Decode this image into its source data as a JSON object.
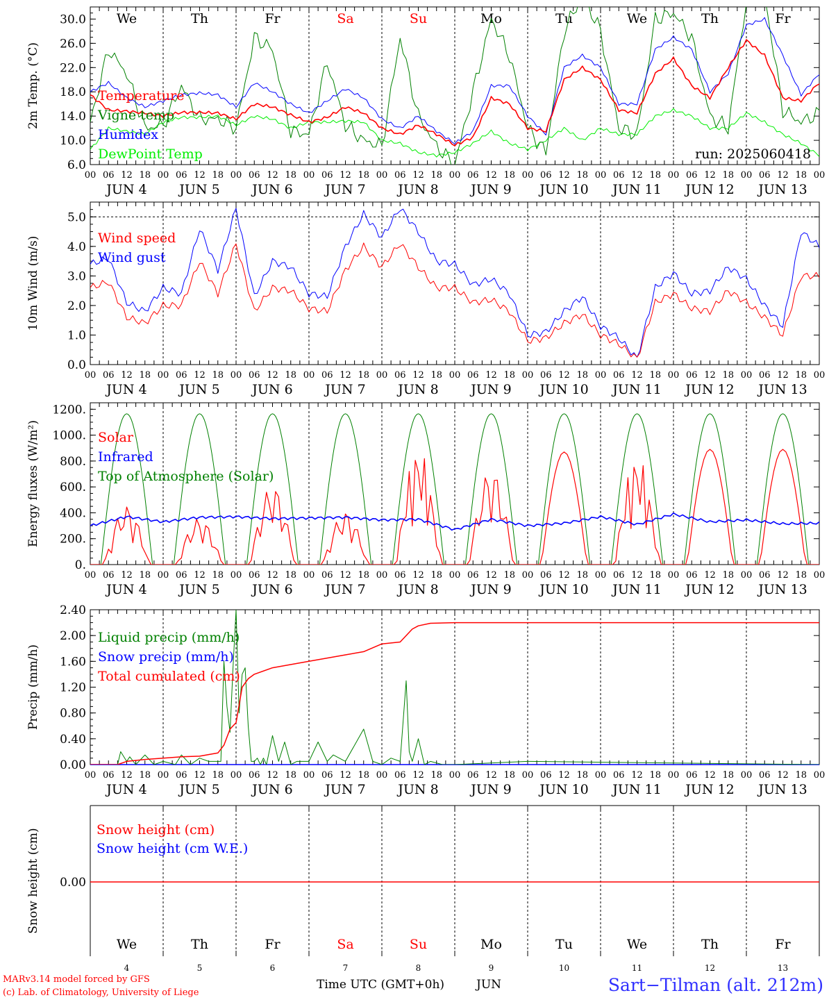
{
  "chart_data": [
    {
      "type": "line",
      "ylabel": "2m Temp. (°C)",
      "ylim": [
        6,
        32
      ],
      "yticks": [
        "6.0",
        "10.0",
        "14.0",
        "18.0",
        "22.0",
        "26.0",
        "30.0"
      ],
      "grid": "dashed vertical lines at each day boundary",
      "legend_position": "left",
      "annotation": "run: 2025060418",
      "x": [
        0,
        6,
        12,
        18,
        24,
        30,
        36,
        42,
        48,
        54,
        60,
        66,
        72,
        78,
        84,
        90,
        96,
        102,
        108,
        114,
        120,
        126,
        132,
        138,
        144,
        150,
        156,
        162,
        168,
        174,
        180,
        186,
        192,
        198,
        204,
        210,
        216,
        222,
        228,
        234,
        240
      ],
      "series": [
        {
          "name": "Temperature",
          "color": "#ff0000",
          "values": [
            17.5,
            15,
            14.8,
            14.5,
            14,
            14.6,
            14.6,
            14.5,
            13.5,
            16,
            15.5,
            14.2,
            13,
            13.8,
            15.5,
            14.5,
            12,
            11,
            12.5,
            11,
            9.2,
            10.5,
            17,
            16,
            12,
            11.5,
            20,
            22,
            20,
            15,
            14.5,
            21,
            23.5,
            19,
            17,
            22,
            26.5,
            24,
            17,
            16.5,
            19.5
          ]
        },
        {
          "name": "Vigne temp",
          "color": "#008000",
          "values": [
            13,
            25,
            21,
            12,
            12.5,
            19,
            13.5,
            13.5,
            12,
            27,
            25,
            11.5,
            11,
            23,
            12.5,
            10,
            9,
            27,
            14,
            9,
            6,
            18,
            30,
            24,
            12,
            8,
            28,
            34,
            28,
            12,
            11,
            30,
            31,
            27,
            14,
            12,
            33,
            34,
            15,
            13,
            14.5
          ]
        },
        {
          "name": "Humidex",
          "color": "#0000ff",
          "values": [
            18,
            19.5,
            17,
            15.5,
            16.5,
            17.5,
            17.8,
            17.5,
            15.5,
            19.5,
            18,
            16,
            14.5,
            16.5,
            18.5,
            17,
            13.5,
            12,
            14,
            11.5,
            9.5,
            11.5,
            19,
            19,
            14,
            11,
            22,
            24,
            22,
            16,
            16,
            25,
            27,
            25,
            18,
            21,
            29,
            30,
            24,
            17.5,
            21
          ]
        },
        {
          "name": "DewPoint Temp",
          "color": "#00ee00",
          "values": [
            8.5,
            12,
            11.5,
            11,
            13,
            13.8,
            13.8,
            14,
            12.5,
            14,
            13.5,
            12,
            13,
            13,
            13.2,
            13,
            10,
            9.5,
            8,
            7.5,
            8,
            9.5,
            11.5,
            9.5,
            8.5,
            10,
            12,
            10,
            12,
            11,
            11,
            14,
            15,
            14,
            12,
            12,
            14.5,
            13,
            11,
            9.5,
            7.5
          ]
        }
      ],
      "day_labels": [
        "We",
        "Th",
        "Fr",
        "Sa",
        "Su",
        "Mo",
        "Tu",
        "We",
        "Th",
        "Fr"
      ],
      "weekend_color": "#ff0000"
    },
    {
      "type": "line",
      "ylabel": "10m Wind (m/s)",
      "ylim": [
        0,
        5.5
      ],
      "yticks": [
        "0.0",
        "1.0",
        "2.0",
        "3.0",
        "4.0",
        "5.0"
      ],
      "reference_line": 5.0,
      "legend_position": "left",
      "x": [
        0,
        6,
        12,
        18,
        24,
        30,
        36,
        42,
        48,
        54,
        60,
        66,
        72,
        78,
        84,
        90,
        96,
        102,
        108,
        114,
        120,
        126,
        132,
        138,
        144,
        150,
        156,
        162,
        168,
        174,
        180,
        186,
        192,
        198,
        204,
        210,
        216,
        222,
        228,
        234,
        240
      ],
      "series": [
        {
          "name": "Wind speed",
          "color": "#ff0000",
          "values": [
            2.6,
            2.8,
            1.6,
            1.4,
            2.0,
            2.0,
            3.5,
            2.4,
            4.1,
            1.8,
            2.6,
            2.5,
            1.9,
            1.8,
            3.2,
            4.0,
            3.3,
            4.1,
            3.3,
            2.6,
            2.6,
            2.1,
            2.2,
            1.8,
            0.8,
            0.9,
            1.4,
            1.7,
            1.0,
            0.7,
            0.2,
            2.1,
            2.4,
            1.9,
            1.8,
            2.5,
            2.1,
            1.6,
            1.0,
            3.0,
            3.0
          ]
        },
        {
          "name": "Wind gust",
          "color": "#0000ff",
          "values": [
            3.4,
            3.6,
            2.1,
            1.8,
            2.6,
            2.4,
            4.6,
            3.2,
            5.3,
            2.3,
            3.5,
            3.3,
            2.4,
            2.3,
            4.0,
            5.1,
            4.3,
            5.3,
            4.5,
            3.5,
            3.4,
            2.7,
            2.9,
            2.4,
            1.0,
            1.1,
            1.8,
            2.3,
            1.3,
            0.9,
            0.2,
            2.6,
            3.1,
            2.4,
            2.5,
            3.3,
            2.9,
            2.0,
            1.3,
            4.5,
            4.0
          ]
        }
      ]
    },
    {
      "type": "line",
      "ylabel": "Energy fluxes (W/m²)",
      "ylim": [
        0,
        1250
      ],
      "yticks": [
        "0.",
        "200.",
        "400.",
        "600.",
        "800.",
        "1000.",
        "1200."
      ],
      "legend_position": "left",
      "series": [
        {
          "name": "Solar",
          "color": "#ff0000",
          "days": [
            {
              "peak": 500,
              "pattern": "broken"
            },
            {
              "peak": 400,
              "pattern": "broken"
            },
            {
              "peak": 680,
              "pattern": "broken"
            },
            {
              "peak": 450,
              "pattern": "broken"
            },
            {
              "peak": 900,
              "pattern": "spiky"
            },
            {
              "peak": 820,
              "pattern": "broken"
            },
            {
              "peak": 870,
              "pattern": "smooth"
            },
            {
              "peak": 840,
              "pattern": "spiky"
            },
            {
              "peak": 890,
              "pattern": "smooth"
            },
            {
              "peak": 890,
              "pattern": "smooth"
            }
          ]
        },
        {
          "name": "Infrared",
          "color": "#0000ff",
          "x": [
            0,
            12,
            24,
            36,
            48,
            60,
            72,
            84,
            96,
            108,
            120,
            132,
            144,
            156,
            168,
            180,
            192,
            204,
            216,
            228,
            240
          ],
          "values": [
            300,
            370,
            330,
            365,
            370,
            355,
            360,
            365,
            345,
            350,
            270,
            350,
            300,
            320,
            370,
            310,
            390,
            330,
            345,
            315,
            320
          ]
        },
        {
          "name": "Top of Atmosphere (Solar)",
          "color": "#008000",
          "peak": 1165
        }
      ]
    },
    {
      "type": "line",
      "ylabel": "Precip (mm/h)",
      "ylim": [
        0,
        2.4
      ],
      "yticks": [
        "0.00",
        "0.40",
        "0.80",
        "1.20",
        "1.60",
        "2.00",
        "2.40"
      ],
      "legend_position": "left",
      "series": [
        {
          "name": "Liquid precip (mm/h)",
          "color": "#008000",
          "x": [
            0,
            9,
            10,
            12,
            13,
            15,
            18,
            21,
            24,
            28,
            30,
            33,
            36,
            39,
            43,
            44,
            45,
            46,
            47,
            48,
            49,
            50,
            51,
            52,
            53,
            54,
            55,
            56,
            57,
            58,
            60,
            62,
            64,
            66,
            68,
            72,
            75,
            78,
            80,
            84,
            90,
            93,
            96,
            99,
            102,
            104,
            105,
            106,
            108,
            110,
            112,
            116,
            120,
            144,
            240
          ],
          "values": [
            0,
            0,
            0.2,
            0.05,
            0.12,
            0,
            0.15,
            0,
            0.05,
            0,
            0.15,
            0,
            0.1,
            0.05,
            0.05,
            1.6,
            0.9,
            0.5,
            1.5,
            2.4,
            0.8,
            1.4,
            1.5,
            0.6,
            0.05,
            0.05,
            0.1,
            0,
            0.1,
            0,
            0.45,
            0.05,
            0.35,
            0,
            0.05,
            0.05,
            0.35,
            0.05,
            0.15,
            0.05,
            0.55,
            0.05,
            0,
            0.1,
            0.05,
            1.3,
            0.2,
            0.05,
            0.4,
            0,
            0.05,
            0,
            0,
            0.05,
            0
          ]
        },
        {
          "name": "Snow precip (mm/h)",
          "color": "#0000ff",
          "values": "0 throughout"
        },
        {
          "name": "Total cumulated (cm)",
          "color": "#ff0000",
          "x": [
            0,
            9,
            12,
            18,
            24,
            30,
            36,
            42,
            44,
            46,
            48,
            50,
            52,
            54,
            60,
            72,
            84,
            90,
            96,
            102,
            104,
            106,
            108,
            112,
            120,
            168,
            240
          ],
          "values": [
            0,
            0,
            0.05,
            0.08,
            0.1,
            0.12,
            0.13,
            0.18,
            0.3,
            0.55,
            0.65,
            1.2,
            1.33,
            1.4,
            1.5,
            1.6,
            1.7,
            1.75,
            1.87,
            1.9,
            2.0,
            2.1,
            2.15,
            2.19,
            2.2,
            2.2,
            2.2
          ]
        }
      ]
    },
    {
      "type": "line",
      "ylabel": "Snow height (cm)",
      "ytick": "0.00",
      "legend_position": "left",
      "series": [
        {
          "name": "Snow height (cm)",
          "color": "#ff0000",
          "values": "0 throughout"
        },
        {
          "name": "Snow height (cm W.E.)",
          "color": "#0000ff",
          "values": "0 throughout"
        }
      ]
    }
  ],
  "x_axis": {
    "hour_ticks": [
      "00",
      "06",
      "12",
      "18"
    ],
    "final_tick": "00",
    "dates": [
      "JUN  4",
      "JUN  5",
      "JUN  6",
      "JUN  7",
      "JUN  8",
      "JUN  9",
      "JUN 10",
      "JUN 11",
      "JUN 12",
      "JUN 13"
    ],
    "day_numbers": [
      "4",
      "5",
      "6",
      "7",
      "8",
      "9",
      "10",
      "11",
      "12",
      "13"
    ],
    "xlabel": "Time UTC (GMT+0h)",
    "month": "JUN"
  },
  "footer": {
    "credit_line1": "MARv3.14 model forced by GFS",
    "credit_line2": "(c) Lab. of Climatology, University of Liege",
    "station": "Sart−Tilman (alt. 212m)"
  }
}
